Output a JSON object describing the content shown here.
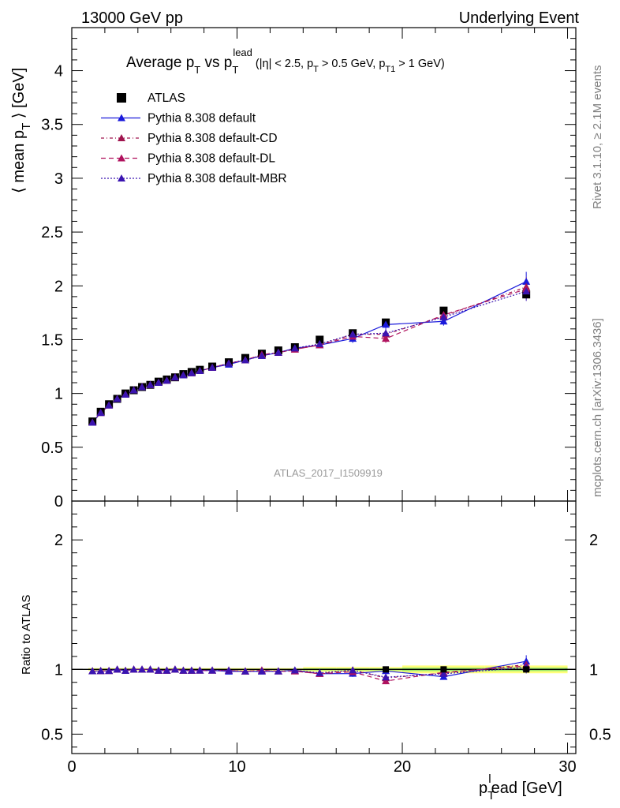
{
  "header": {
    "left": "13000 GeV pp",
    "right": "Underlying Event"
  },
  "side_labels": {
    "rivet": "Rivet 3.1.10, ≥ 2.1M events",
    "mcplots": "mcplots.cern.ch [arXiv:1306.3436]"
  },
  "watermark": "ATLAS_2017_I1509919",
  "chart_data": {
    "type": "line",
    "title": "Average p_T vs p_T^lead (|η| < 2.5, p_T > 0.5 GeV, p_T1 > 1 GeV)",
    "title_parts": {
      "main_a": "Average p",
      "main_a_sub": "T",
      "main_b": " vs p",
      "main_b_sub": "T",
      "main_b_sup": "lead",
      "cond_1": " (|η| < 2.5, p",
      "cond_1_sub": "T",
      "cond_2": " > 0.5 GeV, p",
      "cond_2_sub": "T1",
      "cond_3": " > 1 GeV)"
    },
    "xlabel": "p_T^lead [GeV]",
    "xlabel_parts": {
      "a": "p",
      "sub": "T",
      "sup": "l",
      "b": "ead [GeV]"
    },
    "ylabel": "⟨ mean p_T ⟩ [GeV]",
    "ylabel_parts": {
      "a": "⟨ mean p",
      "sub": "T",
      "b": " ⟩ [GeV]"
    },
    "ratio_ylabel": "Ratio to ATLAS",
    "xlim": [
      0,
      30.5
    ],
    "ylim": [
      0,
      4.4
    ],
    "ratio_ylim": [
      0.35,
      2.3
    ],
    "x_ticks": [
      "0",
      "10",
      "20",
      "30"
    ],
    "y_ticks": [
      "0",
      "0.5",
      "1",
      "1.5",
      "2",
      "2.5",
      "3",
      "3.5",
      "4"
    ],
    "ratio_ticks": [
      "0.5",
      "1",
      "2"
    ],
    "x": [
      1.25,
      1.75,
      2.25,
      2.75,
      3.25,
      3.75,
      4.25,
      4.75,
      5.25,
      5.75,
      6.25,
      6.75,
      7.25,
      7.75,
      8.5,
      9.5,
      10.5,
      11.5,
      12.5,
      13.5,
      15,
      17,
      19,
      22.5,
      27.5
    ],
    "series": [
      {
        "name": "ATLAS",
        "marker": "square",
        "color": "#000000",
        "values": [
          0.74,
          0.83,
          0.9,
          0.95,
          1.0,
          1.03,
          1.06,
          1.08,
          1.11,
          1.13,
          1.15,
          1.18,
          1.2,
          1.22,
          1.25,
          1.29,
          1.33,
          1.37,
          1.4,
          1.43,
          1.5,
          1.56,
          1.66,
          1.77,
          1.92
        ]
      },
      {
        "name": "Pythia 8.308 default",
        "marker": "triangle",
        "color": "#1a1adb",
        "dash": "",
        "values": [
          0.73,
          0.82,
          0.89,
          0.95,
          0.99,
          1.03,
          1.06,
          1.08,
          1.1,
          1.12,
          1.15,
          1.17,
          1.19,
          1.21,
          1.24,
          1.27,
          1.31,
          1.35,
          1.38,
          1.42,
          1.45,
          1.51,
          1.64,
          1.67,
          2.04
        ]
      },
      {
        "name": "Pythia 8.308 default-CD",
        "marker": "triangle",
        "color": "#a0154e",
        "dash": "4,3,1,3",
        "values": [
          0.73,
          0.82,
          0.89,
          0.95,
          0.99,
          1.03,
          1.06,
          1.08,
          1.1,
          1.12,
          1.15,
          1.17,
          1.19,
          1.21,
          1.24,
          1.28,
          1.31,
          1.36,
          1.38,
          1.41,
          1.45,
          1.55,
          1.55,
          1.72,
          1.99
        ]
      },
      {
        "name": "Pythia 8.308 default-DL",
        "marker": "triangle",
        "color": "#b0125e",
        "dash": "6,4",
        "values": [
          0.73,
          0.82,
          0.89,
          0.95,
          0.99,
          1.03,
          1.06,
          1.08,
          1.1,
          1.12,
          1.15,
          1.17,
          1.19,
          1.21,
          1.24,
          1.28,
          1.31,
          1.36,
          1.38,
          1.41,
          1.45,
          1.53,
          1.51,
          1.73,
          1.97
        ]
      },
      {
        "name": "Pythia 8.308 default-MBR",
        "marker": "triangle",
        "color": "#3a14b0",
        "dash": "2,2",
        "values": [
          0.73,
          0.82,
          0.89,
          0.95,
          0.99,
          1.03,
          1.06,
          1.08,
          1.1,
          1.12,
          1.15,
          1.17,
          1.19,
          1.21,
          1.24,
          1.28,
          1.31,
          1.35,
          1.38,
          1.42,
          1.46,
          1.55,
          1.56,
          1.71,
          1.95
        ]
      }
    ]
  }
}
